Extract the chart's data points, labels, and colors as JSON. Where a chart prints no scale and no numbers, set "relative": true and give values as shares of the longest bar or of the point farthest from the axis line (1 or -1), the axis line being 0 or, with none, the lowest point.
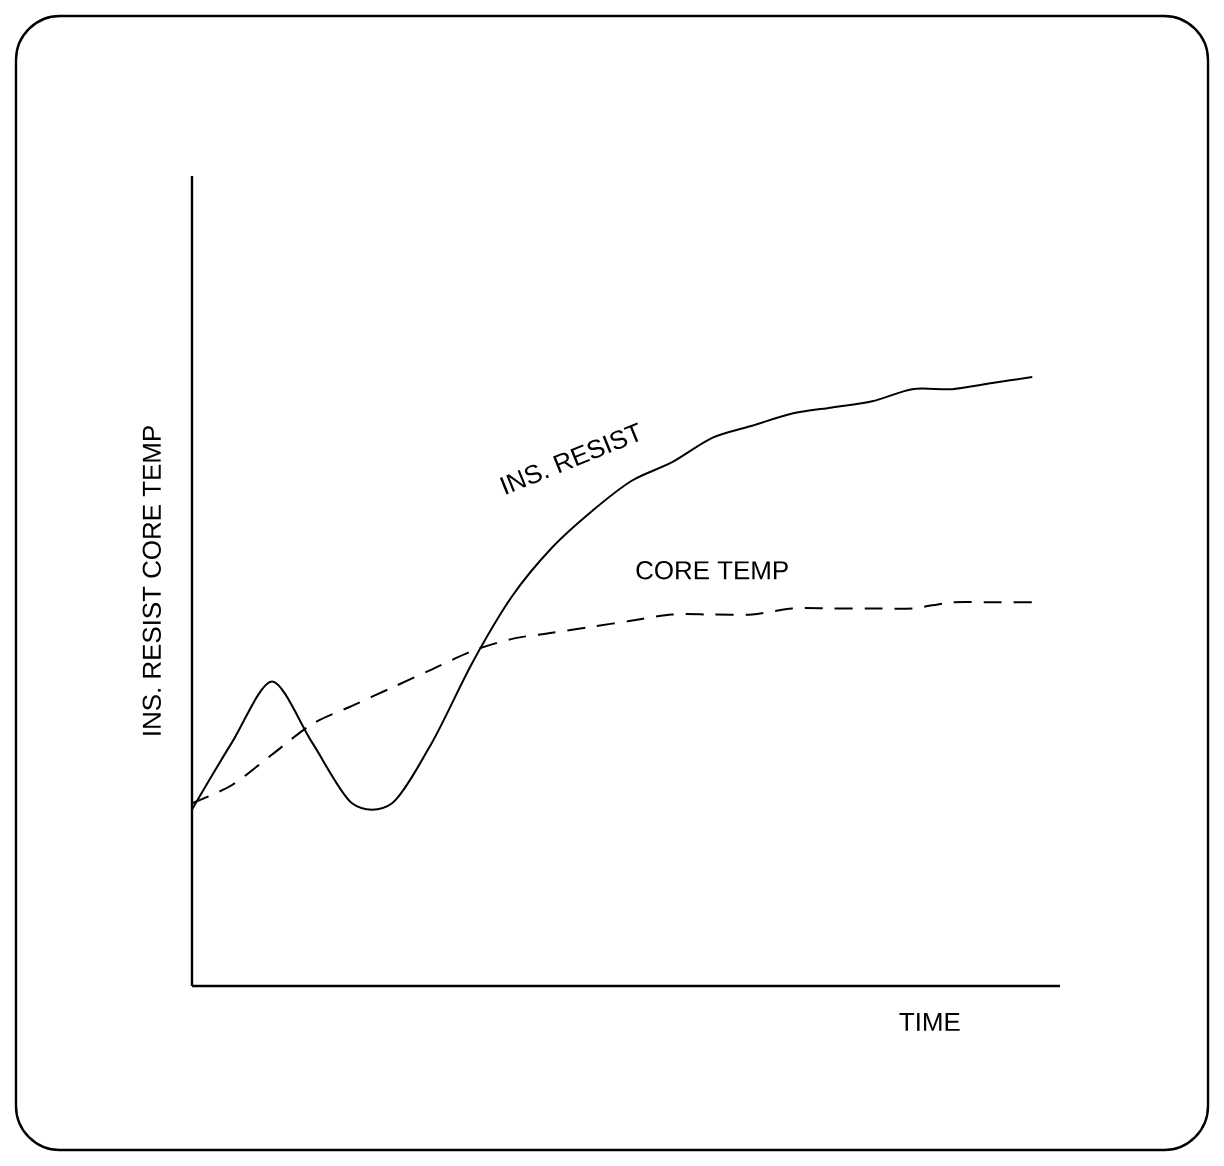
{
  "chart_data": {
    "type": "line",
    "relative": true,
    "xlabel": "TIME",
    "ylabel": "INS. RESIST CORE TEMP",
    "categories": [
      null,
      null,
      null,
      null,
      null,
      null,
      null,
      null,
      null,
      null,
      null,
      null,
      null,
      null,
      null,
      null,
      null,
      null,
      null,
      null,
      null,
      null
    ],
    "series": [
      {
        "name": "INS. RESIST",
        "color": "#000000",
        "line_style": "solid",
        "values": [
          0.29,
          0.4,
          0.5,
          0.4,
          0.3,
          0.3,
          0.4,
          0.53,
          0.64,
          0.72,
          0.78,
          0.83,
          0.86,
          0.9,
          0.92,
          0.94,
          0.95,
          0.96,
          0.98,
          0.98,
          0.99,
          1
        ]
      },
      {
        "name": "CORE TEMP",
        "color": "#000000",
        "line_style": "dashed",
        "values": [
          0.3,
          0.33,
          0.38,
          0.43,
          0.46,
          0.49,
          0.52,
          0.55,
          0.57,
          0.58,
          0.59,
          0.6,
          0.61,
          0.61,
          0.61,
          0.62,
          0.62,
          0.62,
          0.62,
          0.63,
          0.63,
          0.63
        ]
      }
    ],
    "marker": "none"
  }
}
